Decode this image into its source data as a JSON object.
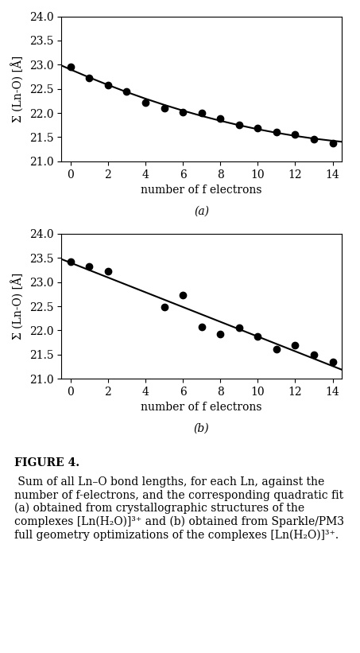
{
  "chart_data": [
    {
      "type": "scatter",
      "annotation": "(a)",
      "xlabel": "number of f electrons",
      "ylabel": "Σ (Ln-O) [Å]",
      "xlim": [
        -0.5,
        14.5
      ],
      "ylim": [
        21.0,
        24.0
      ],
      "xticks": [
        0,
        2,
        4,
        6,
        8,
        10,
        12,
        14
      ],
      "yticks": [
        21.0,
        21.5,
        22.0,
        22.5,
        23.0,
        23.5,
        24.0
      ],
      "grid": false,
      "series": [
        {
          "type": "line",
          "color": "#000000",
          "x": [
            -0.5,
            0,
            1,
            2,
            3,
            4,
            5,
            6,
            7,
            8,
            9,
            10,
            11,
            12,
            13,
            14,
            14.5
          ],
          "values": [
            22.985,
            22.899,
            22.735,
            22.58,
            22.433,
            22.296,
            22.168,
            22.049,
            21.939,
            21.839,
            21.747,
            21.664,
            21.59,
            21.526,
            21.47,
            21.424,
            21.404
          ]
        },
        {
          "type": "scatter",
          "color": "#000000",
          "x": [
            0,
            1,
            2,
            3,
            4,
            5,
            6,
            7,
            8,
            9,
            10,
            11,
            12,
            13,
            14
          ],
          "values": [
            22.95,
            22.73,
            22.57,
            22.45,
            22.22,
            22.1,
            22.02,
            22.0,
            21.88,
            21.76,
            21.68,
            21.61,
            21.55,
            21.46,
            21.38
          ]
        }
      ]
    },
    {
      "type": "scatter",
      "annotation": "(b)",
      "xlabel": "number of f electrons",
      "ylabel": "Σ (Ln-O) [Å]",
      "xlim": [
        -0.5,
        14.5
      ],
      "ylim": [
        21.0,
        24.0
      ],
      "xticks": [
        0,
        2,
        4,
        6,
        8,
        10,
        12,
        14
      ],
      "yticks": [
        21.0,
        21.5,
        22.0,
        22.5,
        23.0,
        23.5,
        24.0
      ],
      "grid": false,
      "series": [
        {
          "type": "line",
          "color": "#000000",
          "x": [
            -0.5,
            14.5
          ],
          "values": [
            23.477,
            21.186
          ]
        },
        {
          "type": "scatter",
          "color": "#000000",
          "x": [
            0,
            1,
            2,
            5,
            6,
            7,
            8,
            9,
            10,
            11,
            12,
            13,
            14
          ],
          "values": [
            23.42,
            23.32,
            23.22,
            22.48,
            22.73,
            22.07,
            21.92,
            22.05,
            21.87,
            21.62,
            21.69,
            21.5,
            21.35
          ]
        }
      ]
    }
  ],
  "caption_bold": "FIGURE 4.",
  "caption": " Sum of all Ln–O bond lengths, for each Ln, against the number of f-electrons, and the corresponding quadratic fit (a) obtained from crystallographic structures of the complexes [Ln(H₂O)]³⁺ and (b) obtained from Sparkle/PM3 full geometry optimizations of the complexes [Ln(H₂O)]³⁺."
}
